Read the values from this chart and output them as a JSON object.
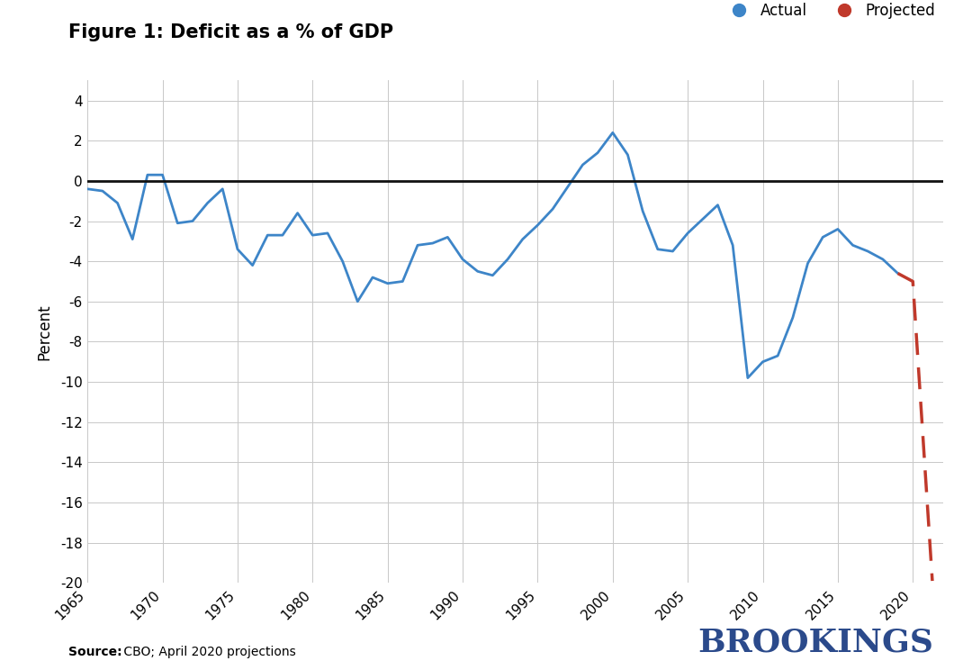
{
  "title": "Figure 1: Deficit as a % of GDP",
  "ylabel": "Percent",
  "source_bold": "Source:",
  "source_rest": " CBO; April 2020 projections",
  "brookings_text": "BROOKINGS",
  "actual_color": "#3d85c8",
  "projected_color": "#c0392b",
  "zero_line_color": "#111111",
  "background_color": "#ffffff",
  "grid_color": "#c8c8c8",
  "ylim": [
    -20,
    5
  ],
  "yticks": [
    4,
    2,
    0,
    -2,
    -4,
    -6,
    -8,
    -10,
    -12,
    -14,
    -16,
    -18,
    -20
  ],
  "xlim": [
    1965,
    2022
  ],
  "actual_years": [
    1965,
    1966,
    1967,
    1968,
    1969,
    1970,
    1971,
    1972,
    1973,
    1974,
    1975,
    1976,
    1977,
    1978,
    1979,
    1980,
    1981,
    1982,
    1983,
    1984,
    1985,
    1986,
    1987,
    1988,
    1989,
    1990,
    1991,
    1992,
    1993,
    1994,
    1995,
    1996,
    1997,
    1998,
    1999,
    2000,
    2001,
    2002,
    2003,
    2004,
    2005,
    2006,
    2007,
    2008,
    2009,
    2010,
    2011,
    2012,
    2013,
    2014,
    2015,
    2016,
    2017,
    2018,
    2019
  ],
  "actual_values": [
    -0.4,
    -0.5,
    -1.1,
    -2.9,
    0.3,
    0.3,
    -2.1,
    -2.0,
    -1.1,
    -0.4,
    -3.4,
    -4.2,
    -2.7,
    -2.7,
    -1.6,
    -2.7,
    -2.6,
    -4.0,
    -6.0,
    -4.8,
    -5.1,
    -5.0,
    -3.2,
    -3.1,
    -2.8,
    -3.9,
    -4.5,
    -4.7,
    -3.9,
    -2.9,
    -2.2,
    -1.4,
    -0.3,
    0.8,
    1.4,
    2.4,
    1.3,
    -1.5,
    -3.4,
    -3.5,
    -2.6,
    -1.9,
    -1.2,
    -3.2,
    -9.8,
    -9.0,
    -8.7,
    -6.8,
    -4.1,
    -2.8,
    -2.4,
    -3.2,
    -3.5,
    -3.9,
    -4.6
  ],
  "projected_years": [
    2019,
    2020,
    2021.3
  ],
  "projected_values": [
    -4.6,
    -5.0,
    -19.9
  ],
  "xtick_years": [
    1965,
    1970,
    1975,
    1980,
    1985,
    1990,
    1995,
    2000,
    2005,
    2010,
    2015,
    2020
  ],
  "brookings_color": "#2b4a8b",
  "title_fontsize": 15,
  "tick_fontsize": 11,
  "ylabel_fontsize": 12
}
